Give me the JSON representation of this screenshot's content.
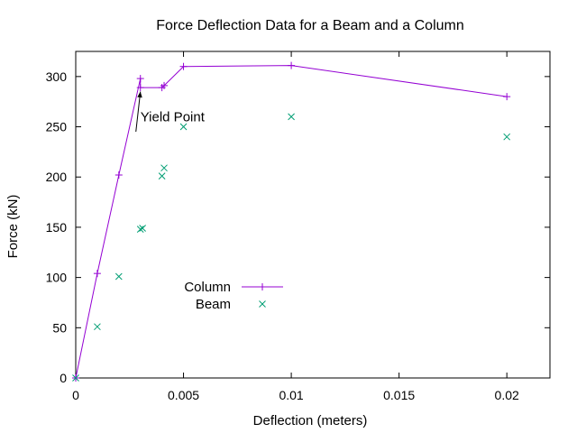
{
  "chart_data": {
    "type": "line",
    "title": "Force Deflection Data for a Beam and a Column",
    "xlabel": "Deflection (meters)",
    "ylabel": "Force (kN)",
    "xlim": [
      0,
      0.022
    ],
    "ylim": [
      0,
      325
    ],
    "xticks": [
      0,
      0.005,
      0.01,
      0.015,
      0.02
    ],
    "xtick_labels": [
      "0",
      "0.005",
      "0.01",
      "0.015",
      "0.02"
    ],
    "yticks": [
      0,
      50,
      100,
      150,
      200,
      250,
      300
    ],
    "ytick_labels": [
      "0",
      "50",
      "100",
      "150",
      "200",
      "250",
      "300"
    ],
    "grid": false,
    "legend_position": "center-left",
    "series": [
      {
        "name": "Column",
        "style": "linespoints",
        "marker": "plus",
        "color": "#9400d3",
        "x": [
          0,
          0.001,
          0.002,
          0.003,
          0.003,
          0.004,
          0.0041,
          0.005,
          0.01,
          0.02
        ],
        "y": [
          0,
          104,
          202,
          298,
          289,
          289,
          291,
          310,
          311,
          280
        ]
      },
      {
        "name": "Beam",
        "style": "points",
        "marker": "cross",
        "color": "#009e73",
        "x": [
          0,
          0.001,
          0.002,
          0.003,
          0.0031,
          0.004,
          0.0041,
          0.005,
          0.01,
          0.02
        ],
        "y": [
          0,
          51,
          101,
          148,
          149,
          201,
          209,
          250,
          260,
          240
        ]
      }
    ],
    "annotations": [
      {
        "text": "Yield Point",
        "x": 0.003,
        "y": 250,
        "arrow_to": [
          0.003,
          285
        ]
      }
    ]
  }
}
